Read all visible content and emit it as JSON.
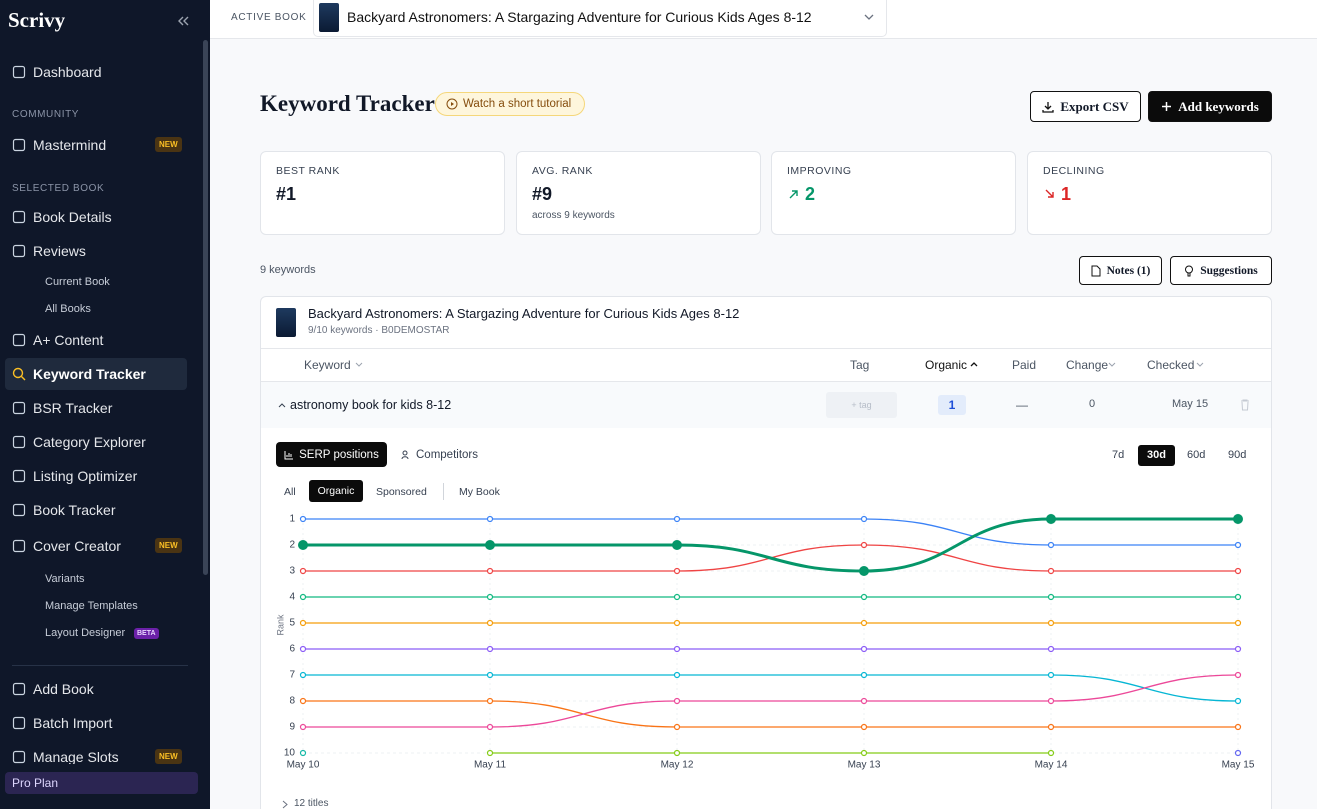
{
  "sidebar": {
    "brand": "Scrivy",
    "nav": [
      {
        "label": "Dashboard"
      },
      {
        "section": "COMMUNITY"
      },
      {
        "label": "Mastermind",
        "badge": "NEW"
      },
      {
        "section": "SELECTED BOOK"
      },
      {
        "label": "Book Details"
      },
      {
        "label": "Reviews"
      },
      {
        "sub": "Current Book"
      },
      {
        "sub": "All Books"
      },
      {
        "label": "A+ Content"
      },
      {
        "label": "Keyword Tracker",
        "active": true
      },
      {
        "label": "BSR Tracker"
      },
      {
        "label": "Category Explorer"
      },
      {
        "label": "Listing Optimizer"
      },
      {
        "label": "Book Tracker"
      },
      {
        "label": "Cover Creator",
        "badge": "NEW"
      },
      {
        "sub": "Variants"
      },
      {
        "sub": "Manage Templates"
      },
      {
        "sub": "Layout Designer",
        "badge": "BETA"
      },
      {
        "label": "Add Book"
      },
      {
        "label": "Batch Import"
      },
      {
        "label": "Manage Slots",
        "badge": "NEW"
      }
    ],
    "plan": "Pro Plan"
  },
  "topbar": {
    "label": "ACTIVE BOOK",
    "book": "Backyard Astronomers: A Stargazing Adventure for Curious Kids Ages 8-12"
  },
  "header": {
    "title": "Keyword Tracker",
    "tutorial": "Watch a short tutorial",
    "export": "Export CSV",
    "add": "Add keywords"
  },
  "stats": [
    {
      "label": "BEST RANK",
      "value": "#1"
    },
    {
      "label": "AVG. RANK",
      "value": "#9",
      "note": "across 9 keywords"
    },
    {
      "label": "IMPROVING",
      "value": 2
    },
    {
      "label": "DECLINING",
      "value": 1
    }
  ],
  "toolbar": {
    "count": "9 keywords",
    "notes": "Notes (1)",
    "suggestions": "Suggestions"
  },
  "book_card": {
    "title": "Backyard Astronomers: A Stargazing Adventure for Curious Kids Ages 8-12",
    "subtitle": "9/10 keywords · B0DEMOSTAR"
  },
  "table": {
    "headers": [
      "Keyword",
      "Tag",
      "Organic",
      "Paid",
      "Change",
      "Checked"
    ],
    "row": {
      "keyword": "astronomy book for kids 8-12",
      "tag": "+ tag",
      "organic": 1,
      "paid": "—",
      "change": 0,
      "checked": "May 15"
    }
  },
  "tabs": [
    "SERP positions",
    "Competitors"
  ],
  "ranges": [
    "7d",
    "30d",
    "60d",
    "90d"
  ],
  "filters": [
    "All",
    "Organic",
    "Sponsored",
    "My Book"
  ],
  "footer_toggle": "12 titles",
  "chart_data": {
    "type": "line",
    "y_label": "Rank",
    "categories": [
      "May 10",
      "May 11",
      "May 12",
      "May 13",
      "May 14",
      "May 15"
    ],
    "ylim": [
      10,
      1
    ],
    "yticks": [
      1,
      2,
      3,
      4,
      5,
      6,
      7,
      8,
      9,
      10
    ],
    "grid": true,
    "series": [
      {
        "color": "#3b82f6",
        "values": [
          1,
          1,
          1,
          1,
          2,
          2
        ]
      },
      {
        "color": "#ef4444",
        "values": [
          3,
          3,
          3,
          2,
          3,
          3
        ]
      },
      {
        "color": "#10b981",
        "values": [
          4,
          4,
          4,
          4,
          4,
          4
        ]
      },
      {
        "color": "#f59e0b",
        "values": [
          5,
          5,
          5,
          5,
          5,
          5
        ]
      },
      {
        "color": "#8b5cf6",
        "values": [
          6,
          6,
          6,
          6,
          6,
          6
        ]
      },
      {
        "color": "#06b6d4",
        "values": [
          7,
          7,
          7,
          7,
          7,
          8
        ]
      },
      {
        "color": "#f97316",
        "values": [
          8,
          8,
          9,
          9,
          9,
          9
        ]
      },
      {
        "color": "#ec4899",
        "values": [
          9,
          9,
          8,
          8,
          8,
          7
        ]
      },
      {
        "color": "#84cc16",
        "values": [
          null,
          10,
          10,
          10,
          10,
          null
        ]
      },
      {
        "color": "#14b8a6",
        "values": [
          10,
          null,
          null,
          null,
          null,
          null
        ]
      },
      {
        "color": "#6366f1",
        "values": [
          null,
          null,
          null,
          null,
          null,
          10
        ]
      },
      {
        "color": "#059669",
        "values": [
          2,
          2,
          2,
          3,
          1,
          1
        ],
        "highlight": true
      }
    ]
  }
}
